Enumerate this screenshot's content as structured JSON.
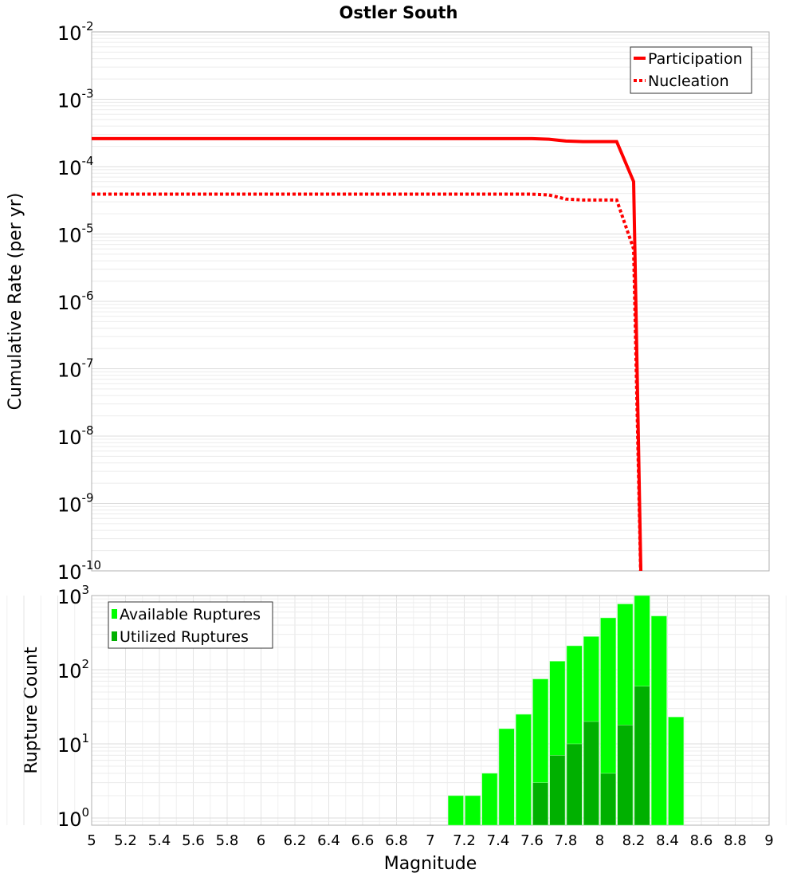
{
  "chart_data": [
    {
      "type": "line",
      "title": "Ostler South",
      "xlabel": "",
      "ylabel": "Cumulative Rate (per yr)",
      "xlim": [
        5,
        9
      ],
      "ylim": [
        1e-10,
        0.01
      ],
      "yscale": "log",
      "ytick_exponents": [
        "-2",
        "-3",
        "-4",
        "-5",
        "-6",
        "-7",
        "-8",
        "-9",
        "-10"
      ],
      "legend_position": "top-right",
      "series": [
        {
          "name": "Participation",
          "style": "solid",
          "color": "#ff0000",
          "x": [
            5.0,
            7.6,
            7.7,
            7.8,
            7.9,
            8.0,
            8.1,
            8.2,
            8.25
          ],
          "y": [
            0.00026,
            0.00026,
            0.000255,
            0.00024,
            0.000235,
            0.000235,
            0.000235,
            6e-05,
            1e-11
          ]
        },
        {
          "name": "Nucleation",
          "style": "dotted",
          "color": "#ff0000",
          "x": [
            5.0,
            7.6,
            7.7,
            7.8,
            7.9,
            8.0,
            8.1,
            8.2,
            8.25
          ],
          "y": [
            3.9e-05,
            3.9e-05,
            3.8e-05,
            3.3e-05,
            3.2e-05,
            3.2e-05,
            3.2e-05,
            6e-06,
            1e-11
          ]
        }
      ]
    },
    {
      "type": "bar",
      "xlabel": "Magnitude",
      "ylabel": "Rupture Count",
      "xlim": [
        5,
        9
      ],
      "ylim": [
        0.8,
        1000
      ],
      "yscale": "log",
      "ytick_exponents": [
        "3",
        "2",
        "1",
        "0"
      ],
      "xticks": [
        "5",
        "5.2",
        "5.4",
        "5.6",
        "5.8",
        "6",
        "6.2",
        "6.4",
        "6.6",
        "6.8",
        "7",
        "7.2",
        "7.4",
        "7.6",
        "7.8",
        "8",
        "8.2",
        "8.4",
        "8.6",
        "8.8",
        "9"
      ],
      "legend_position": "top-left",
      "bin_width": 0.1,
      "x": [
        7.15,
        7.25,
        7.35,
        7.45,
        7.55,
        7.65,
        7.75,
        7.85,
        7.95,
        8.05,
        8.15,
        8.25,
        8.35,
        8.45
      ],
      "series": [
        {
          "name": "Available Ruptures",
          "color": "#00ff00",
          "values": [
            2,
            2,
            4,
            16,
            25,
            75,
            130,
            210,
            280,
            500,
            770,
            1000,
            530,
            23
          ]
        },
        {
          "name": "Utilized Ruptures",
          "color": "#00b000",
          "values": [
            0,
            0,
            0,
            0,
            0,
            3,
            7,
            10,
            20,
            4,
            18,
            60,
            0,
            0
          ]
        }
      ]
    }
  ]
}
